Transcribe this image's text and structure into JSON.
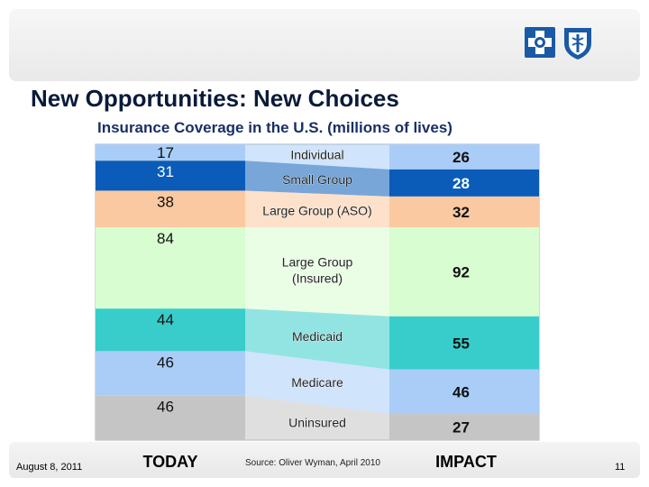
{
  "slide": {
    "title": "New Opportunities: New Choices",
    "date": "August 8, 2011",
    "source": "Source: Oliver Wyman, April 2010",
    "page_number": "11"
  },
  "colors": {
    "individual": "#a9cdf7",
    "small_group": "#0a5cb8",
    "large_group_aso": "#fbc9a1",
    "large_group_insured": "#d8fdd0",
    "medicaid": "#38cdca",
    "medicare": "#a9cdf7",
    "uninsured": "#c5c5c5",
    "brand": "#1a5aa5"
  },
  "chart_data": {
    "type": "bar",
    "subtype": "stacked-100",
    "title": "Insurance Coverage in the U.S. (millions of lives)",
    "categories": [
      "TODAY",
      "IMPACT"
    ],
    "series": [
      {
        "name": "Individual",
        "values": [
          17,
          26
        ],
        "color_key": "individual"
      },
      {
        "name": "Small Group",
        "values": [
          31,
          28
        ],
        "color_key": "small_group"
      },
      {
        "name": "Large Group (ASO)",
        "values": [
          38,
          32
        ],
        "color_key": "large_group_aso"
      },
      {
        "name": "Large Group (Insured)",
        "series_label": [
          "Large Group",
          "(Insured)"
        ],
        "values": [
          84,
          92
        ],
        "color_key": "large_group_insured"
      },
      {
        "name": "Medicaid",
        "values": [
          44,
          55
        ],
        "color_key": "medicaid"
      },
      {
        "name": "Medicare",
        "values": [
          46,
          46
        ],
        "color_key": "medicare"
      },
      {
        "name": "Uninsured",
        "values": [
          46,
          27
        ],
        "color_key": "uninsured"
      }
    ]
  }
}
